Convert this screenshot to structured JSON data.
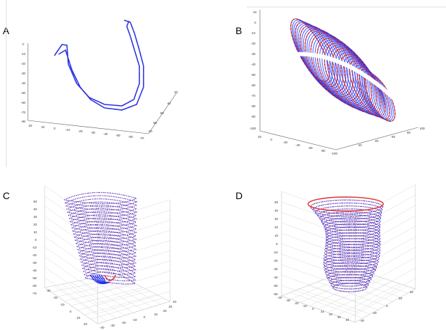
{
  "panels": [
    {
      "label": "A",
      "z_ticks": [
        "0",
        "-10",
        "-20",
        "-30",
        "-40",
        "-50",
        "-60",
        "-70",
        "-80"
      ],
      "x_ticks": [
        "20",
        "10",
        "0",
        "-10",
        "-20",
        "-30",
        "-40",
        "-50",
        "-60",
        "-70"
      ],
      "y_ticks": [
        "20",
        "40",
        "60",
        "80",
        "-10"
      ]
    },
    {
      "label": "B",
      "z_ticks": [
        "10",
        "0",
        "-10",
        "-20",
        "-30",
        "-40",
        "-50",
        "-60",
        "-70",
        "-80",
        "-90",
        "-100"
      ],
      "x_ticks": [
        "20",
        "0",
        "-20",
        "-40",
        "-60",
        "-80",
        "-100"
      ],
      "y_ticks": [
        "20",
        "40",
        "60",
        "80",
        "100"
      ]
    },
    {
      "label": "C",
      "z_ticks": [
        "50",
        "40",
        "30",
        "20",
        "10",
        "0",
        "-10",
        "-20",
        "-30",
        "-40",
        "-50",
        "-60",
        "-70"
      ],
      "x_ticks": [
        "-30",
        "-20",
        "-10",
        "0",
        "10",
        "20"
      ],
      "y_ticks": [
        "-40",
        "-30",
        "-20",
        "-10",
        "0",
        "10",
        "20",
        "30",
        "40"
      ]
    },
    {
      "label": "D",
      "z_ticks": [
        "50",
        "40",
        "30",
        "20",
        "10",
        "0",
        "-10",
        "-20",
        "-30",
        "-40",
        "-50",
        "-60"
      ],
      "x_ticks": [
        "-40",
        "-30",
        "-20",
        "-10",
        "0",
        "10",
        "20",
        "30",
        "40"
      ],
      "y_ticks": [
        "-40",
        "-20",
        "0",
        "20",
        "40"
      ]
    }
  ],
  "colors": {
    "contour_red": "#e8352b",
    "contour_blue": "#2233ee",
    "grid": "#cfcfcf",
    "axis": "#555555"
  }
}
